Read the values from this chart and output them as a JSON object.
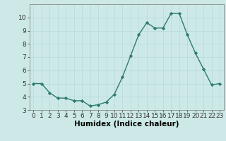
{
  "x": [
    0,
    1,
    2,
    3,
    4,
    5,
    6,
    7,
    8,
    9,
    10,
    11,
    12,
    13,
    14,
    15,
    16,
    17,
    18,
    19,
    20,
    21,
    22,
    23
  ],
  "y": [
    5.0,
    5.0,
    4.3,
    3.9,
    3.9,
    3.7,
    3.7,
    3.3,
    3.4,
    3.6,
    4.2,
    5.5,
    7.1,
    8.7,
    9.6,
    9.2,
    9.2,
    10.3,
    10.3,
    8.7,
    7.3,
    6.1,
    4.9,
    5.0
  ],
  "xlabel": "Humidex (Indice chaleur)",
  "ylim": [
    3,
    11
  ],
  "xlim_min": -0.5,
  "xlim_max": 23.5,
  "yticks": [
    3,
    4,
    5,
    6,
    7,
    8,
    9,
    10
  ],
  "xticks": [
    0,
    1,
    2,
    3,
    4,
    5,
    6,
    7,
    8,
    9,
    10,
    11,
    12,
    13,
    14,
    15,
    16,
    17,
    18,
    19,
    20,
    21,
    22,
    23
  ],
  "line_color": "#2d7a6e",
  "marker": "D",
  "marker_size": 2.2,
  "bg_color": "#cce9e7",
  "grid_color": "#b8d8d6",
  "axis_bg": "#cce9e7",
  "xlabel_fontsize": 7.5,
  "tick_fontsize": 6.5,
  "line_width": 1.0
}
